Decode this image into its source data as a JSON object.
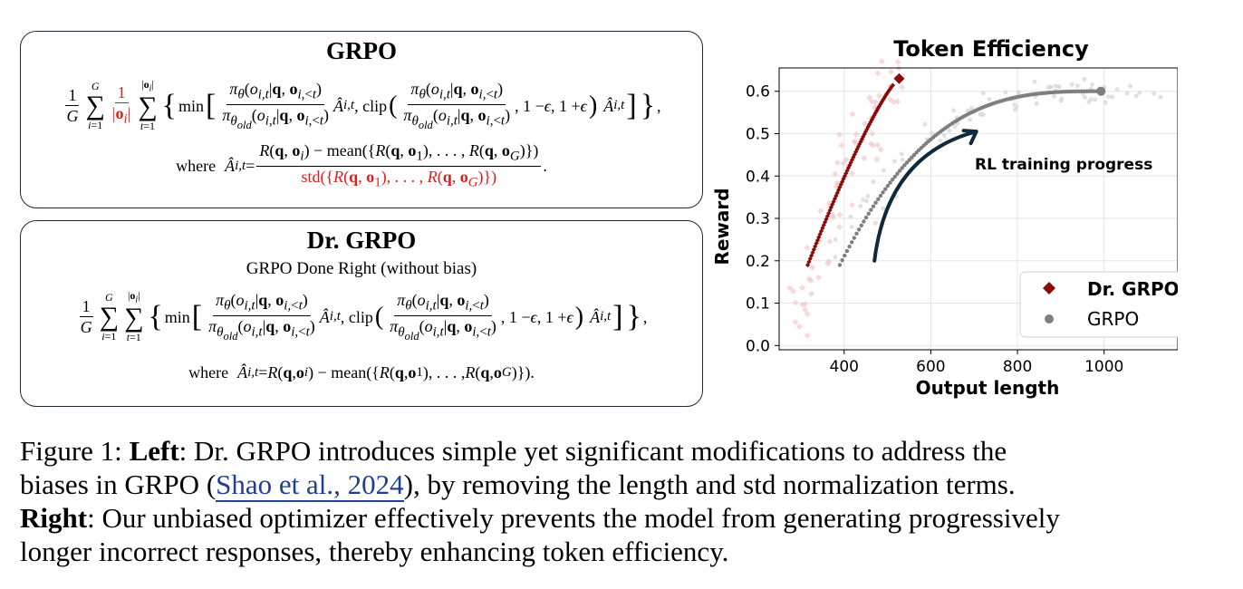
{
  "left_panel": {
    "grpo_box": {
      "title": "GRPO",
      "where_label": "where"
    },
    "drgrpo_box": {
      "title": "Dr. GRPO",
      "subtitle": "GRPO Done Right (without bias)",
      "where_label": "where"
    }
  },
  "chart_data": {
    "type": "scatter",
    "title": "Token Efficiency",
    "xlabel": "Output length",
    "ylabel": "Reward",
    "xlim": [
      250,
      1170
    ],
    "ylim": [
      -0.01,
      0.655
    ],
    "xticks": [
      400,
      600,
      800,
      1000
    ],
    "yticks": [
      0.0,
      0.1,
      0.2,
      0.3,
      0.4,
      0.5,
      0.6
    ],
    "grid": true,
    "legend_position": "bottom-right",
    "annotation": "RL training progress",
    "colors": {
      "dr_grpo": "#8b0a0a",
      "grpo": "#7f7f7f",
      "arrow": "#10293b"
    },
    "series": [
      {
        "name": "Dr. GRPO",
        "marker": "diamond",
        "start": [
          316,
          0.19
        ],
        "end": [
          527,
          0.63
        ]
      },
      {
        "name": "GRPO",
        "marker": "circle",
        "start": [
          390,
          0.19
        ],
        "end": [
          993,
          0.6
        ]
      }
    ]
  },
  "caption": {
    "line1_prefix": "Figure 1: ",
    "line1_bold": "Left",
    "line1_rest": ": Dr. GRPO introduces simple yet significant modifications to address the",
    "line2_pre": "biases in GRPO (",
    "line2_cite": "Shao et al., 2024",
    "line2_post": "), by removing the length and std normalization terms.",
    "line3_bold": "Right",
    "line3_rest": ": Our unbiased optimizer effectively prevents the model from generating progressively",
    "line4": "longer incorrect responses, thereby enhancing token efficiency."
  }
}
